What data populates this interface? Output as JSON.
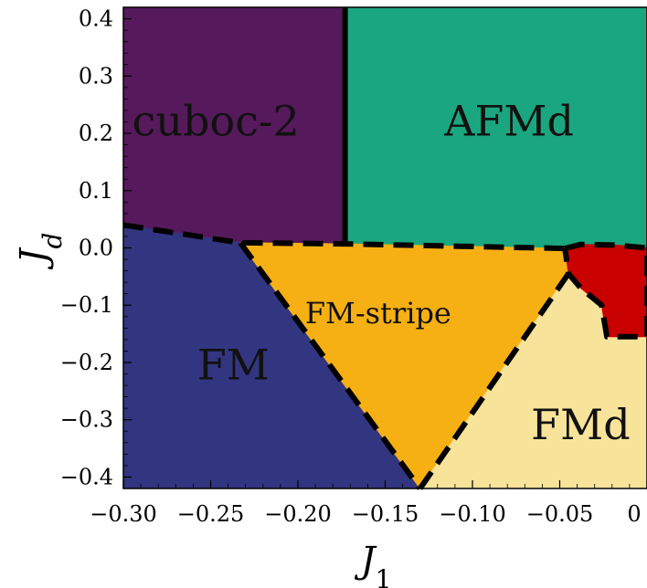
{
  "chart_data": {
    "type": "phase-diagram",
    "xlabel": "J",
    "xlabel_sub": "1",
    "ylabel": "J",
    "ylabel_sub": "d",
    "xlim": [
      -0.3,
      0.0
    ],
    "ylim": [
      -0.42,
      0.42
    ],
    "xticks": [
      {
        "value": -0.3,
        "label": "−0.30"
      },
      {
        "value": -0.25,
        "label": "−0.25"
      },
      {
        "value": -0.2,
        "label": "−0.20"
      },
      {
        "value": -0.15,
        "label": "−0.15"
      },
      {
        "value": -0.1,
        "label": "−0.10"
      },
      {
        "value": -0.05,
        "label": "−0.05"
      },
      {
        "value": 0.0,
        "label": "0"
      }
    ],
    "yticks": [
      {
        "value": 0.4,
        "label": "0.4"
      },
      {
        "value": 0.3,
        "label": "0.3"
      },
      {
        "value": 0.2,
        "label": "0.2"
      },
      {
        "value": 0.1,
        "label": "0.1"
      },
      {
        "value": 0.0,
        "label": "0.0"
      },
      {
        "value": -0.1,
        "label": "−0.1"
      },
      {
        "value": -0.2,
        "label": "−0.2"
      },
      {
        "value": -0.3,
        "label": "−0.3"
      },
      {
        "value": -0.4,
        "label": "−0.4"
      }
    ],
    "regions": [
      {
        "name": "cuboc-2",
        "color": "#561a5c",
        "label_at": [
          -0.247,
          0.22
        ],
        "label_size": 46,
        "polygon": [
          [
            -0.3,
            0.42
          ],
          [
            -0.173,
            0.42
          ],
          [
            -0.173,
            0.007
          ],
          [
            -0.233,
            0.009
          ],
          [
            -0.3,
            0.04
          ]
        ]
      },
      {
        "name": "AFMd",
        "color": "#1aa67f",
        "label_at": [
          -0.079,
          0.22
        ],
        "label_size": 46,
        "polygon": [
          [
            -0.173,
            0.42
          ],
          [
            0.0,
            0.42
          ],
          [
            0.0,
            0.0
          ],
          [
            -0.018,
            0.005
          ],
          [
            -0.038,
            0.006
          ],
          [
            -0.047,
            -0.001
          ],
          [
            -0.173,
            0.007
          ]
        ]
      },
      {
        "name": "FM",
        "color": "#323580",
        "label_at": [
          -0.237,
          -0.205
        ],
        "label_size": 46,
        "polygon": [
          [
            -0.3,
            0.04
          ],
          [
            -0.233,
            0.009
          ],
          [
            -0.13,
            -0.42
          ],
          [
            -0.3,
            -0.42
          ]
        ]
      },
      {
        "name": "FM-stripe",
        "color": "#f7b013",
        "label_at": [
          -0.154,
          -0.115
        ],
        "label_size": 32,
        "polygon": [
          [
            -0.233,
            0.009
          ],
          [
            -0.173,
            0.007
          ],
          [
            -0.047,
            -0.001
          ],
          [
            -0.045,
            -0.045
          ],
          [
            -0.13,
            -0.42
          ]
        ]
      },
      {
        "name": "FMd",
        "color": "#f8e39a",
        "label_at": [
          -0.038,
          -0.31
        ],
        "label_size": 46,
        "polygon": [
          [
            -0.13,
            -0.42
          ],
          [
            -0.045,
            -0.045
          ],
          [
            -0.038,
            -0.07
          ],
          [
            -0.026,
            -0.1
          ],
          [
            -0.023,
            -0.155
          ],
          [
            0.0,
            -0.155
          ],
          [
            0.0,
            -0.42
          ]
        ]
      },
      {
        "name": "",
        "color": "#c80000",
        "label_at": null,
        "label_size": 0,
        "polygon": [
          [
            -0.047,
            -0.001
          ],
          [
            -0.038,
            0.006
          ],
          [
            -0.018,
            0.005
          ],
          [
            0.0,
            0.0
          ],
          [
            0.0,
            -0.155
          ],
          [
            -0.023,
            -0.155
          ],
          [
            -0.026,
            -0.1
          ],
          [
            -0.038,
            -0.07
          ],
          [
            -0.045,
            -0.045
          ]
        ]
      }
    ],
    "boundaries": [
      {
        "style": "dashed",
        "points": [
          [
            -0.3,
            0.04
          ],
          [
            -0.233,
            0.009
          ],
          [
            -0.173,
            0.007
          ],
          [
            -0.047,
            -0.001
          ]
        ]
      },
      {
        "style": "dashed",
        "points": [
          [
            -0.233,
            0.009
          ],
          [
            -0.13,
            -0.42
          ]
        ]
      },
      {
        "style": "dashed",
        "points": [
          [
            -0.13,
            -0.42
          ],
          [
            -0.045,
            -0.045
          ]
        ]
      },
      {
        "style": "dashed",
        "points": [
          [
            -0.047,
            -0.001
          ],
          [
            -0.038,
            0.006
          ],
          [
            -0.018,
            0.005
          ],
          [
            0.0,
            0.0
          ],
          [
            0.0,
            -0.155
          ],
          [
            -0.023,
            -0.155
          ],
          [
            -0.026,
            -0.1
          ],
          [
            -0.038,
            -0.07
          ],
          [
            -0.045,
            -0.045
          ],
          [
            -0.047,
            -0.001
          ]
        ]
      },
      {
        "style": "solid",
        "points": [
          [
            -0.173,
            0.42
          ],
          [
            -0.173,
            0.007
          ]
        ]
      }
    ]
  }
}
